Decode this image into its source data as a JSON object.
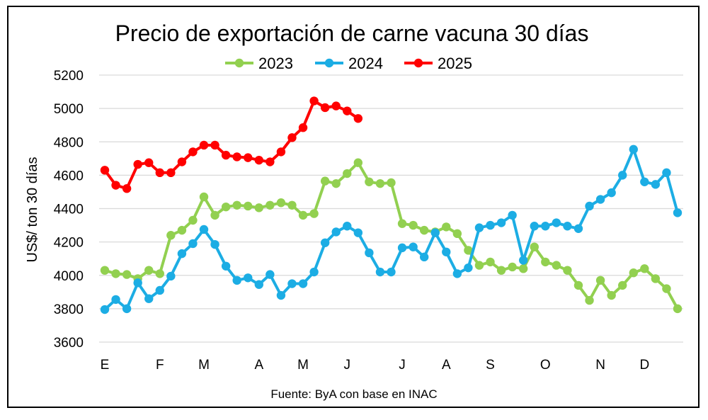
{
  "chart_data": {
    "type": "line",
    "title": "Precio de exportación de carne vacuna 30 días",
    "ylabel": "US$/ ton 30 días",
    "xlabel": "",
    "source": "Fuente: ByA con base en INAC",
    "ylim": [
      3600,
      5200
    ],
    "yticks": [
      3600,
      3800,
      4000,
      4200,
      4400,
      4600,
      4800,
      5000,
      5200
    ],
    "grid": true,
    "legend_position": "top-center",
    "month_labels": [
      "E",
      "F",
      "M",
      "A",
      "M",
      "J",
      "J",
      "A",
      "S",
      "O",
      "N",
      "D"
    ],
    "month_label_positions": [
      0,
      5,
      9,
      14,
      18,
      22,
      27,
      31,
      35,
      40,
      45,
      49
    ],
    "x_count": 53,
    "series": [
      {
        "name": "2023",
        "color": "#92d050",
        "values": [
          4030,
          4010,
          4005,
          3980,
          4030,
          4010,
          4240,
          4270,
          4330,
          4470,
          4360,
          4410,
          4420,
          4415,
          4405,
          4420,
          4435,
          4420,
          4360,
          4370,
          4565,
          4550,
          4610,
          4675,
          4560,
          4550,
          4555,
          4310,
          4300,
          4270,
          4260,
          4290,
          4250,
          4150,
          4060,
          4080,
          4030,
          4050,
          4040,
          4170,
          4080,
          4060,
          4030,
          3940,
          3850,
          3970,
          3880,
          3940,
          4015,
          4040,
          3980,
          3920,
          3800
        ]
      },
      {
        "name": "2024",
        "color": "#1cade4",
        "values": [
          3795,
          3855,
          3800,
          3955,
          3860,
          3910,
          3995,
          4130,
          4190,
          4275,
          4185,
          4055,
          3970,
          3985,
          3945,
          4005,
          3880,
          3950,
          3950,
          4020,
          4195,
          4260,
          4295,
          4255,
          4135,
          4020,
          4020,
          4165,
          4170,
          4110,
          4255,
          4140,
          4010,
          4045,
          4285,
          4300,
          4315,
          4360,
          4090,
          4295,
          4295,
          4315,
          4295,
          4280,
          4415,
          4455,
          4495,
          4600,
          4755,
          4560,
          4545,
          4615,
          4375
        ]
      },
      {
        "name": "2025",
        "color": "#ff0000",
        "values": [
          4630,
          4540,
          4520,
          4665,
          4675,
          4615,
          4615,
          4680,
          4740,
          4780,
          4780,
          4720,
          4710,
          4705,
          4690,
          4680,
          4740,
          4825,
          4885,
          5045,
          5005,
          5015,
          4985,
          4940
        ]
      }
    ]
  }
}
